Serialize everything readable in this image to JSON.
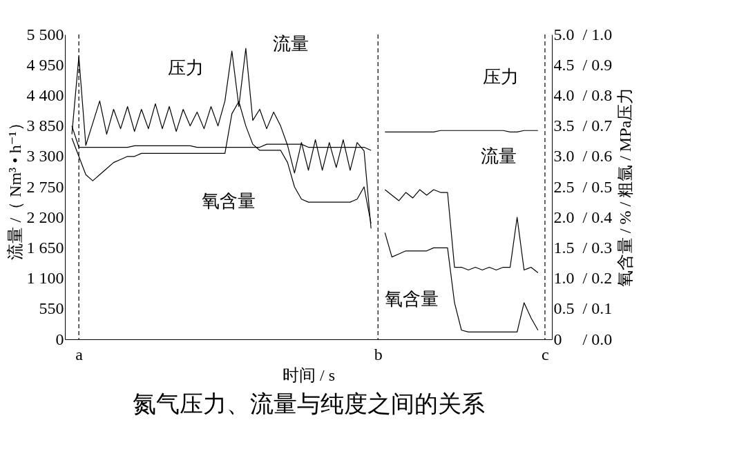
{
  "chart_data": {
    "type": "line",
    "title": "氮气压力、流量与纯度之间的关系",
    "xlabel": "时间 / s",
    "ylabel": "流量 /（ Nm³ • h⁻¹）",
    "y2label": "氧含量 / % / 粗氩 / MPa压力",
    "categories": [
      null,
      null,
      "a",
      null,
      null,
      null,
      null,
      null,
      null,
      null,
      null,
      null,
      null,
      null,
      null,
      null,
      null,
      null,
      null,
      null,
      null,
      null,
      null,
      null,
      null,
      null,
      null,
      null,
      null,
      null,
      null,
      null,
      null,
      null,
      null,
      null,
      null,
      null,
      null,
      null,
      null,
      null,
      null,
      null,
      null,
      "b",
      null,
      null,
      null,
      null,
      null,
      null,
      null,
      null,
      null,
      null,
      null,
      null,
      null,
      null,
      null,
      null,
      null,
      null,
      null,
      null,
      null,
      null,
      null,
      "c",
      null
    ],
    "ylim": [
      0,
      5500
    ],
    "yticks": [
      0,
      550,
      {
        "value": 1100,
        "label": "1 100"
      },
      {
        "value": 1650,
        "label": "1 650"
      },
      {
        "value": 2200,
        "label": "2 200"
      },
      {
        "value": 2750,
        "label": "2 750"
      },
      {
        "value": 3300,
        "label": "3 300"
      },
      {
        "value": 3850,
        "label": "3 850"
      },
      {
        "value": 4400,
        "label": "4 400"
      },
      {
        "value": 4950,
        "label": "4 950"
      },
      {
        "value": 5500,
        "label": "5 500"
      }
    ],
    "y2lim": [
      0,
      5
    ],
    "y2ticks": [
      0,
      0.5,
      {
        "value": 1,
        "label": "1.0"
      },
      1.5,
      {
        "value": 2,
        "label": "2.0"
      },
      2.5,
      {
        "value": 3,
        "label": "3.0"
      },
      3.5,
      {
        "value": 4,
        "label": "4.0"
      },
      4.5,
      {
        "value": 5,
        "label": "5.0"
      }
    ],
    "y3lim": [
      0,
      1
    ],
    "y3ticks": [
      {
        "value": 0,
        "label": "/ 0.0"
      },
      {
        "value": 0.1,
        "label": "/ 0.1"
      },
      {
        "value": 0.2,
        "label": "/ 0.2"
      },
      {
        "value": 0.3,
        "label": "/ 0.3"
      },
      {
        "value": 0.4,
        "label": "/ 0.4"
      },
      {
        "value": 0.5,
        "label": "/ 0.5"
      },
      {
        "value": 0.6,
        "label": "/ 0.6"
      },
      {
        "value": 0.7,
        "label": "/ 0.7"
      },
      {
        "value": 0.8,
        "label": "/ 0.8"
      },
      {
        "value": 0.9,
        "label": "/ 0.9"
      },
      {
        "value": 1,
        "label": "/ 1.0"
      }
    ],
    "grid": false,
    "line_style": "solid",
    "marker": "none",
    "ref_lines": [
      {
        "axis": "x",
        "value": "a",
        "line_style": "dashed"
      },
      {
        "axis": "x",
        "value": "b",
        "line_style": "dashed"
      },
      {
        "axis": "x",
        "value": "c",
        "line_style": "dashed"
      }
    ],
    "annotations": [
      "压力",
      "流量",
      "氧含量",
      "压力",
      "流量",
      "氧含量"
    ],
    "series": [
      {
        "color": "#000000",
        "values": [
          null,
          3700,
          5100,
          3500,
          3900,
          4300,
          3700,
          4150,
          3800,
          4200,
          3750,
          4150,
          3800,
          4250,
          3800,
          4200,
          3750,
          4150,
          3850,
          4100,
          3800,
          4200,
          3850,
          4300,
          5200,
          4200,
          5250,
          3950,
          4150,
          3800,
          4100,
          3850,
          3500,
          3000,
          3550,
          3050,
          3600,
          3050,
          3550,
          3100,
          3600,
          3050,
          3550,
          3400,
          2000,
          null,
          2700,
          2600,
          2500,
          2650,
          2550,
          2700,
          2600,
          2700,
          2650,
          2650,
          1300,
          1300,
          1250,
          1300,
          1250,
          1300,
          1250,
          1300,
          1300,
          2200,
          1250,
          1300,
          1200,
          null,
          null
        ]
      },
      {
        "color": "#000000",
        "axis": "y2",
        "values": [
          null,
          3.3,
          3.0,
          2.7,
          2.6,
          2.7,
          2.8,
          2.9,
          2.95,
          3.0,
          3.0,
          3.05,
          3.05,
          3.05,
          3.05,
          3.05,
          3.05,
          3.05,
          3.05,
          3.05,
          3.05,
          3.05,
          3.05,
          3.05,
          3.7,
          3.9,
          3.5,
          3.2,
          3.1,
          3.1,
          3.1,
          3.1,
          2.9,
          2.5,
          2.3,
          2.25,
          2.25,
          2.25,
          2.25,
          2.25,
          2.25,
          2.25,
          2.3,
          2.5,
          1.9,
          null,
          1.75,
          1.35,
          1.4,
          1.45,
          1.45,
          1.45,
          1.45,
          1.5,
          1.5,
          1.5,
          0.6,
          0.15,
          0.12,
          0.12,
          0.12,
          0.12,
          0.12,
          0.12,
          0.12,
          0.12,
          0.6,
          0.35,
          0.15,
          null,
          null
        ]
      },
      {
        "color": "#000000",
        "axis": "y3",
        "values": [
          null,
          0.7,
          0.63,
          0.63,
          0.63,
          0.63,
          0.63,
          0.63,
          0.63,
          0.63,
          0.635,
          0.635,
          0.635,
          0.635,
          0.635,
          0.635,
          0.635,
          0.635,
          0.635,
          0.63,
          0.63,
          0.63,
          0.63,
          0.63,
          0.63,
          0.63,
          0.63,
          0.63,
          0.63,
          0.64,
          0.64,
          0.64,
          0.64,
          0.64,
          0.64,
          0.63,
          0.63,
          0.63,
          0.63,
          0.63,
          0.63,
          0.63,
          0.63,
          0.63,
          0.62,
          null,
          0.68,
          0.68,
          0.68,
          0.68,
          0.68,
          0.68,
          0.68,
          0.68,
          0.685,
          0.685,
          0.685,
          0.685,
          0.685,
          0.685,
          0.685,
          0.685,
          0.685,
          0.685,
          0.68,
          0.68,
          0.685,
          0.685,
          0.685,
          null,
          null
        ]
      }
    ]
  }
}
